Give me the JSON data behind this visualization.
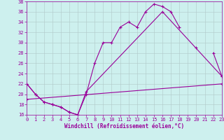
{
  "xlabel": "Windchill (Refroidissement éolien,°C)",
  "xlim": [
    0,
    23
  ],
  "ylim": [
    16,
    38
  ],
  "yticks": [
    16,
    18,
    20,
    22,
    24,
    26,
    28,
    30,
    32,
    34,
    36,
    38
  ],
  "xticks": [
    0,
    1,
    2,
    3,
    4,
    5,
    6,
    7,
    8,
    9,
    10,
    11,
    12,
    13,
    14,
    15,
    16,
    17,
    18,
    19,
    20,
    21,
    22,
    23
  ],
  "background_color": "#cdf0ee",
  "line_color": "#990099",
  "grid_color": "#b0c8c8",
  "series": [
    {
      "x": [
        0,
        1,
        2,
        3,
        4,
        5,
        6,
        7,
        8,
        9,
        10,
        11,
        12,
        13,
        14,
        15,
        16,
        17,
        18,
        19,
        20,
        21,
        22,
        23
      ],
      "y": [
        22,
        20,
        18.5,
        18,
        17.5,
        16.5,
        16,
        20,
        26,
        30,
        30,
        33,
        34,
        33,
        36,
        37.5,
        37,
        36,
        33,
        null,
        29,
        null,
        28,
        23.5
      ]
    },
    {
      "x": [
        0,
        1,
        2,
        3,
        4,
        5,
        6,
        7,
        16,
        23
      ],
      "y": [
        22,
        20,
        18.5,
        18,
        17.5,
        16.5,
        16,
        20.5,
        36,
        23.5
      ]
    },
    {
      "x": [
        0,
        23
      ],
      "y": [
        19,
        22
      ]
    }
  ]
}
